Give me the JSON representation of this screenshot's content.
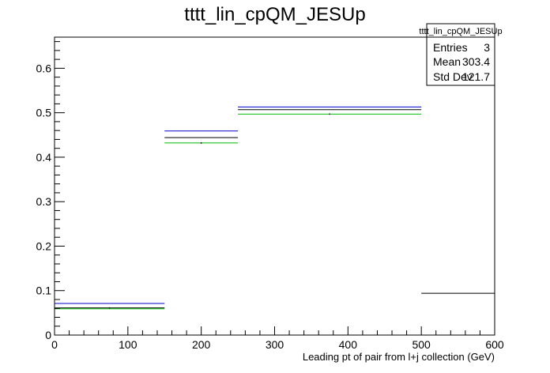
{
  "chart_data": {
    "type": "step",
    "title": "tttt_lin_cpQM_JESUp",
    "xlabel": "Leading pt of pair from l+j collection (GeV)",
    "ylabel": "",
    "xlim": [
      0,
      600
    ],
    "ylim": [
      0,
      0.67
    ],
    "x_ticks": [
      0,
      100,
      200,
      300,
      400,
      500,
      600
    ],
    "y_ticks": [
      0,
      0.1,
      0.2,
      0.3,
      0.4,
      0.5,
      0.6
    ],
    "x_tick_labels": [
      "0",
      "100",
      "200",
      "300",
      "400",
      "500",
      "600"
    ],
    "y_tick_labels": [
      "0",
      "0.1",
      "0.2",
      "0.3",
      "0.4",
      "0.5",
      "0.6"
    ],
    "bin_edges": [
      0,
      150,
      250,
      500,
      600
    ],
    "series": [
      {
        "color": "#0000cc",
        "values": [
          0.071,
          0.459,
          0.513,
          null
        ]
      },
      {
        "color": "#000000",
        "values": [
          0.061,
          0.444,
          0.507,
          0.094
        ]
      },
      {
        "color": "#00bb00",
        "values": [
          0.059,
          0.432,
          0.497,
          null
        ]
      }
    ],
    "markers": [
      {
        "x": 75,
        "y": 0.061
      },
      {
        "x": 200,
        "y": 0.432
      },
      {
        "x": 375,
        "y": 0.497
      }
    ],
    "stats_box": {
      "title": "tttt_lin_cpQM_JESUp",
      "rows": [
        {
          "label": "Entries",
          "value": "3"
        },
        {
          "label": "Mean",
          "value": "303.4"
        },
        {
          "label": "Std Dev",
          "value": "121.7"
        }
      ]
    },
    "grid": false,
    "legend": "none"
  }
}
